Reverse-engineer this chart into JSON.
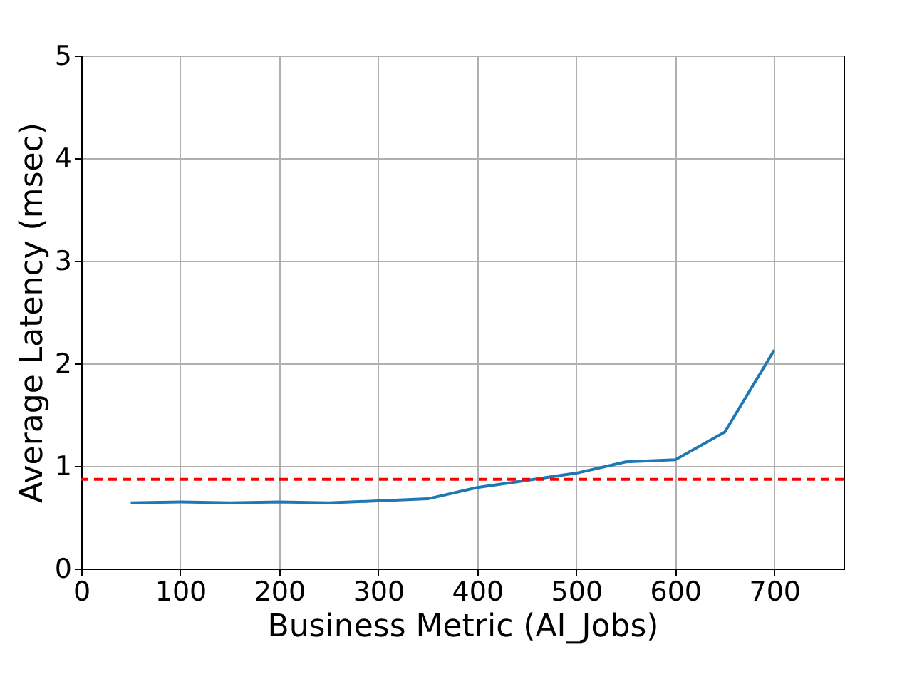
{
  "chart_data": {
    "type": "line",
    "xlabel": "Business Metric (AI_Jobs)",
    "ylabel": "Average Latency (msec)",
    "x": [
      50,
      100,
      150,
      200,
      250,
      300,
      350,
      400,
      450,
      500,
      550,
      600,
      650,
      700
    ],
    "series": [
      {
        "color": "#1f77b4",
        "values": [
          0.64,
          0.65,
          0.64,
          0.65,
          0.64,
          0.66,
          0.68,
          0.79,
          0.86,
          0.93,
          1.04,
          1.06,
          1.33,
          2.13
        ]
      }
    ],
    "xlim": [
      0,
      770
    ],
    "xticks": [
      0,
      100,
      200,
      300,
      400,
      500,
      600,
      700
    ],
    "ylim": [
      0,
      5
    ],
    "yticks": [
      0,
      1,
      2,
      3,
      4,
      5
    ],
    "ref_lines": [
      {
        "axis": "y",
        "value": 0.87,
        "color": "#ff0000",
        "line_style": "dashed"
      }
    ],
    "grid": true,
    "marker": "none",
    "line_style": "solid"
  }
}
